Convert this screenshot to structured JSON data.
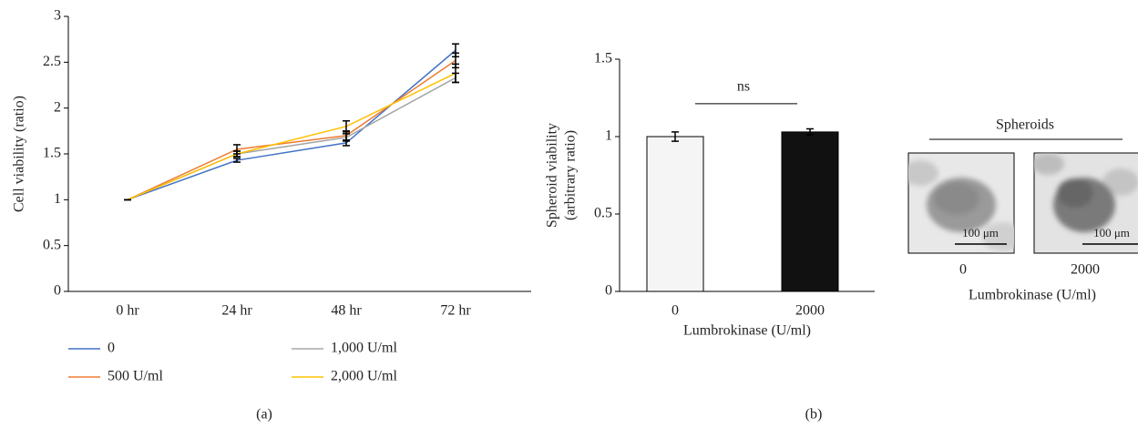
{
  "chart_data": [
    {
      "type": "line",
      "y_label": "Cell viability (ratio)",
      "categories": [
        "0 hr",
        "24 hr",
        "48 hr",
        "72 hr"
      ],
      "series": [
        {
          "name": "0",
          "color": "#4472c4",
          "values": [
            1,
            1.43,
            1.62,
            2.63
          ],
          "errors": [
            0,
            0.02,
            0.03,
            0.07
          ]
        },
        {
          "name": "500 U/ml",
          "color": "#ed7d31",
          "values": [
            1,
            1.55,
            1.7,
            2.52
          ],
          "errors": [
            0,
            0.05,
            0.05,
            0.08
          ]
        },
        {
          "name": "1,000 U/ml",
          "color": "#a5a5a5",
          "values": [
            1,
            1.5,
            1.68,
            2.33
          ],
          "errors": [
            0,
            0.03,
            0.04,
            0.05
          ]
        },
        {
          "name": "2,000 U/ml",
          "color": "#ffc000",
          "values": [
            1,
            1.5,
            1.8,
            2.38
          ],
          "errors": [
            0,
            0.03,
            0.06,
            0.1
          ]
        }
      ],
      "ylim": [
        0,
        3
      ],
      "yticks": [
        0,
        0.5,
        1,
        1.5,
        2,
        2.5,
        3
      ],
      "legend": "bottom",
      "panel_label": "(a)"
    },
    {
      "type": "bar",
      "y_label": [
        "Spheroid viability",
        "(arbitrary ratio)"
      ],
      "x_label": "Lumbrokinase (U/ml)",
      "categories": [
        "0",
        "2000"
      ],
      "values": [
        1,
        1.03
      ],
      "errors": [
        0.03,
        0.02
      ],
      "colors": [
        "#f5f5f5",
        "#111111"
      ],
      "annotation": "ns",
      "ylim": [
        0,
        1.5
      ],
      "yticks": [
        0,
        0.5,
        1,
        1.5
      ],
      "panel_label": "(b)"
    }
  ],
  "images": {
    "title": "Spheroids",
    "scale_bar": "100 μm",
    "labels": [
      "0",
      "2000"
    ],
    "x_label": "Lumbrokinase (U/ml)"
  }
}
